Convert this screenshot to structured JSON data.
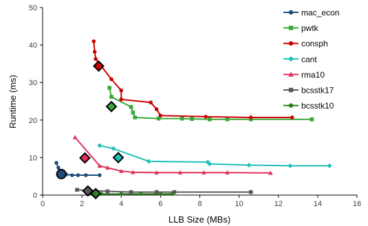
{
  "chart_data": {
    "type": "line",
    "title": "",
    "xlabel": "LLB Size (MBs)",
    "ylabel": "Runtime (ms)",
    "xlim": [
      0,
      16
    ],
    "ylim": [
      0,
      50
    ],
    "xticks": [
      "0",
      "2",
      "4",
      "6",
      "8",
      "10",
      "12",
      "14",
      "16"
    ],
    "yticks": [
      "0",
      "10",
      "20",
      "30",
      "40",
      "50"
    ],
    "grid": false,
    "legend": "right",
    "series": [
      {
        "name": "mac_econ",
        "color": "#1f4e79",
        "marker": "circle",
        "x": [
          0.7,
          0.8,
          0.9,
          1.0,
          1.2,
          1.5,
          1.8,
          2.2,
          2.9
        ],
        "y": [
          8.6,
          7.3,
          6.4,
          5.7,
          5.5,
          5.3,
          5.3,
          5.3,
          5.3
        ],
        "highlight": {
          "x": 0.95,
          "y": 5.6
        }
      },
      {
        "name": "pwtk",
        "color": "#3aa83a",
        "marker": "square",
        "x": [
          3.4,
          3.5,
          4.5,
          4.6,
          4.7,
          5.9,
          7.1,
          7.6,
          8.5,
          9.4,
          10.6,
          13.7
        ],
        "y": [
          28.6,
          26.2,
          23.5,
          22.0,
          20.7,
          20.4,
          20.4,
          20.3,
          20.2,
          20.2,
          20.2,
          20.2
        ],
        "highlight": {
          "x": 3.5,
          "y": 23.6
        }
      },
      {
        "name": "consph",
        "color": "#cc0000",
        "marker": "circle",
        "x": [
          2.6,
          2.65,
          2.7,
          3.5,
          4.0,
          4.0,
          5.5,
          5.8,
          6.0,
          8.3,
          10.6,
          12.7
        ],
        "y": [
          41.0,
          38.2,
          36.3,
          30.9,
          27.9,
          25.5,
          24.7,
          22.9,
          21.2,
          20.9,
          20.7,
          20.7
        ],
        "highlight": {
          "x": 2.85,
          "y": 34.4
        }
      },
      {
        "name": "cant",
        "color": "#1fbfb8",
        "marker": "diamond",
        "x": [
          2.9,
          3.6,
          5.4,
          8.4,
          8.5,
          10.5,
          12.6,
          14.6
        ],
        "y": [
          13.2,
          12.4,
          9.0,
          8.8,
          8.3,
          8.0,
          7.8,
          7.8
        ],
        "highlight": {
          "x": 3.85,
          "y": 10.0
        }
      },
      {
        "name": "rma10",
        "color": "#e0305a",
        "marker": "triangle",
        "x": [
          1.65,
          2.9,
          3.3,
          4.0,
          4.6,
          5.8,
          7.0,
          8.2,
          9.4,
          11.6
        ],
        "y": [
          15.4,
          7.8,
          7.3,
          6.4,
          6.1,
          6.0,
          6.0,
          6.0,
          6.0,
          5.9
        ],
        "highlight": {
          "x": 2.15,
          "y": 9.9
        }
      },
      {
        "name": "bcsstk17",
        "color": "#595959",
        "marker": "square",
        "x": [
          1.75,
          3.3,
          4.5,
          5.8,
          6.7,
          10.6
        ],
        "y": [
          1.4,
          1.0,
          0.8,
          0.8,
          0.8,
          0.8
        ],
        "highlight": {
          "x": 2.3,
          "y": 1.1
        }
      },
      {
        "name": "bcsstk10",
        "color": "#2e7d1e",
        "marker": "circle",
        "x": [
          3.0,
          4.0,
          5.0,
          6.0,
          6.6
        ],
        "y": [
          0.3,
          0.3,
          0.3,
          0.3,
          0.3
        ],
        "highlight": {
          "x": 2.7,
          "y": 0.4
        }
      }
    ]
  }
}
